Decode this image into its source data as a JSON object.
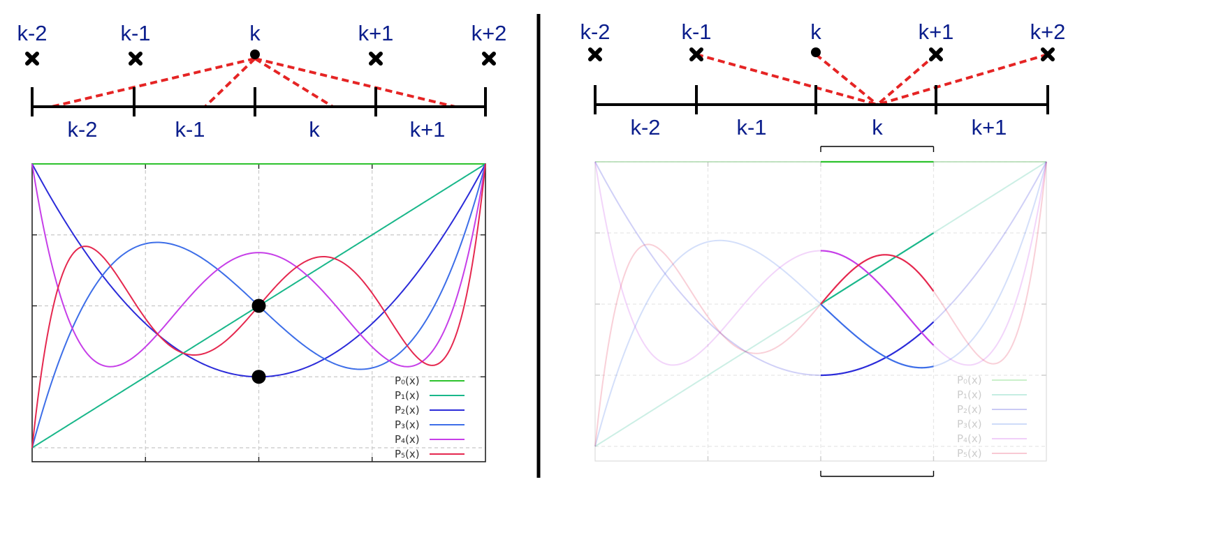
{
  "left_panel": {
    "node_labels": [
      "k-2",
      "k-1",
      "k",
      "k+1",
      "k+2"
    ],
    "cell_labels": [
      "k-2",
      "k-1",
      "k",
      "k+1"
    ],
    "center_node": "k",
    "links": [
      {
        "from_node": "k",
        "to_cell": "k-2"
      },
      {
        "from_node": "k",
        "to_cell": "k-1"
      },
      {
        "from_node": "k",
        "to_cell": "k"
      },
      {
        "from_node": "k",
        "to_cell": "k+1"
      }
    ],
    "legend": [
      "P₀(x)",
      "P₁(x)",
      "P₂(x)",
      "P₃(x)",
      "P₄(x)",
      "P₅(x)"
    ]
  },
  "right_panel": {
    "node_labels": [
      "k-2",
      "k-1",
      "k",
      "k+1",
      "k+2"
    ],
    "cell_labels": [
      "k-2",
      "k-1",
      "k",
      "k+1"
    ],
    "center_cell": "k",
    "links": [
      {
        "from_node": "k-1",
        "to_cell": "k"
      },
      {
        "from_node": "k",
        "to_cell": "k"
      },
      {
        "from_node": "k+1",
        "to_cell": "k"
      },
      {
        "from_node": "k+2",
        "to_cell": "k"
      }
    ],
    "legend": [
      "P₀(x)",
      "P₁(x)",
      "P₂(x)",
      "P₃(x)",
      "P₄(x)",
      "P₅(x)"
    ],
    "highlight_interval": [
      0.0,
      0.5
    ]
  },
  "chart_data": [
    {
      "type": "line",
      "x_range": [
        -1,
        1
      ],
      "y_range": [
        -1,
        1
      ],
      "grid": true,
      "legend_position": "bottom-right",
      "functions": [
        "legendre_0",
        "legendre_1",
        "legendre_2",
        "legendre_3",
        "legendre_4",
        "legendre_5"
      ],
      "series": [
        {
          "name": "P₀(x)",
          "color": "#2dc22d"
        },
        {
          "name": "P₁(x)",
          "color": "#19b78a"
        },
        {
          "name": "P₂(x)",
          "color": "#2b2bd9"
        },
        {
          "name": "P₃(x)",
          "color": "#3d6ee8"
        },
        {
          "name": "P₄(x)",
          "color": "#c63ee8"
        },
        {
          "name": "P₅(x)",
          "color": "#e5284f"
        }
      ],
      "marked_points": [
        {
          "x": 0,
          "y": 0
        },
        {
          "x": 0,
          "y": -0.5
        }
      ]
    },
    {
      "type": "line",
      "x_range": [
        -1,
        1
      ],
      "y_range": [
        -1,
        1
      ],
      "grid": true,
      "legend_position": "bottom-right",
      "functions": [
        "legendre_0",
        "legendre_1",
        "legendre_2",
        "legendre_3",
        "legendre_4",
        "legendre_5"
      ],
      "series": [
        {
          "name": "P₀(x)",
          "color": "#2dc22d"
        },
        {
          "name": "P₁(x)",
          "color": "#19b78a"
        },
        {
          "name": "P₂(x)",
          "color": "#2b2bd9"
        },
        {
          "name": "P₃(x)",
          "color": "#3d6ee8"
        },
        {
          "name": "P₄(x)",
          "color": "#c63ee8"
        },
        {
          "name": "P₅(x)",
          "color": "#e5284f"
        }
      ],
      "highlight_x_range": [
        0.0,
        0.5
      ]
    }
  ]
}
